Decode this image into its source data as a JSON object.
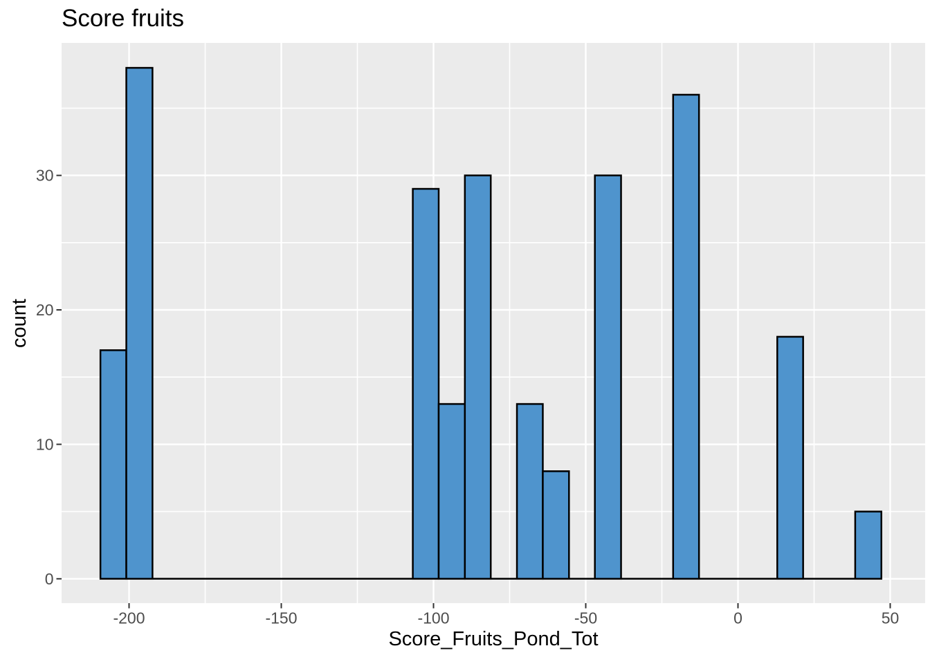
{
  "chart_data": {
    "type": "bar",
    "subtype": "histogram",
    "title": "Score fruits",
    "xlabel": "Score_Fruits_Pond_Tot",
    "ylabel": "count",
    "x_ticks": [
      -200,
      -150,
      -100,
      -50,
      0,
      50
    ],
    "x_tick_labels": [
      "-200",
      "-150",
      "-100",
      "-50",
      "0",
      "50"
    ],
    "y_ticks": [
      0,
      10,
      20,
      30
    ],
    "y_tick_labels": [
      "0",
      "10",
      "20",
      "30"
    ],
    "x_minor_gridlines": [
      -175,
      -125,
      -75,
      -25,
      25
    ],
    "y_minor_gridlines": [
      5,
      15,
      25,
      35
    ],
    "xlim": [
      -222.0,
      61.5
    ],
    "ylim": [
      -1.85,
      39.85
    ],
    "binwidth": 8.55,
    "bins": [
      {
        "x0": -209.4,
        "x1": -200.9,
        "count": 17
      },
      {
        "x0": -200.9,
        "x1": -192.3,
        "count": 38
      },
      {
        "x0": -106.8,
        "x1": -98.3,
        "count": 29
      },
      {
        "x0": -98.3,
        "x1": -89.7,
        "count": 13
      },
      {
        "x0": -89.7,
        "x1": -81.2,
        "count": 30
      },
      {
        "x0": -72.6,
        "x1": -64.1,
        "count": 13
      },
      {
        "x0": -64.1,
        "x1": -55.5,
        "count": 8
      },
      {
        "x0": -47.0,
        "x1": -38.4,
        "count": 30
      },
      {
        "x0": -21.3,
        "x1": -12.8,
        "count": 36
      },
      {
        "x0": 12.9,
        "x1": 21.4,
        "count": 18
      },
      {
        "x0": 38.5,
        "x1": 47.1,
        "count": 5
      }
    ],
    "zero_line_range": [
      -209.4,
      47.1
    ],
    "grid": "on",
    "legend_position": "none",
    "colors": {
      "bar_fill": "#4f94cd",
      "bar_stroke": "#000000",
      "panel_bg": "#ebebeb",
      "gridline": "#ffffff",
      "axis_tick_text": "#4d4d4d",
      "tick_mark": "#333333",
      "title_text": "#000000",
      "page_bg": "#ffffff"
    }
  }
}
